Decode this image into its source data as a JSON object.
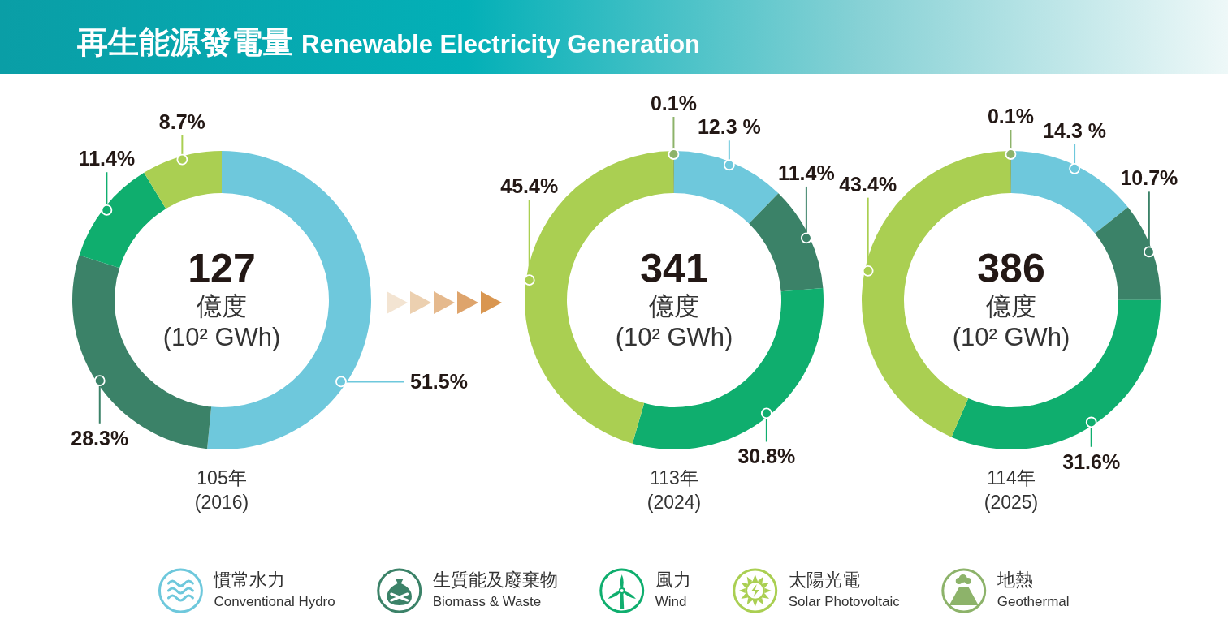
{
  "chart_data": [
    {
      "type": "other",
      "title": "再生能源發電量 Renewable Electricity Generation"
    },
    {
      "type": "donut",
      "title": "105年",
      "subtitle": "(2016)",
      "categories": [
        null,
        null,
        null,
        null
      ],
      "values": [
        51.5,
        28.3,
        11.4,
        8.7
      ],
      "colors": [
        "#6ec8dc",
        "#3b8268",
        "#0fae6e",
        "#aacf52"
      ],
      "value_labels": [
        "51.5%",
        "28.3%",
        "11.4%",
        "8.7%"
      ],
      "annotations": [
        "127",
        "億度",
        "(10² GWh)"
      ]
    },
    {
      "type": "donut",
      "title": "113年",
      "subtitle": "(2024)",
      "categories": [
        "慣常水力 Conventional Hydro",
        "生質能及廢棄物 Biomass & Waste",
        "風力 Wind",
        "太陽光電 Solar Photovoltaic",
        "地熱 Geothermal"
      ],
      "values": [
        12.3,
        11.4,
        30.8,
        45.4,
        0.1
      ],
      "colors": [
        "#6ec8dc",
        "#3b8268",
        "#0fae6e",
        "#aacf52",
        "#8db36a"
      ],
      "value_labels": [
        "12.3 %",
        "11.4%",
        "30.8%",
        "45.4%",
        "0.1%"
      ],
      "annotations": [
        "341",
        "億度",
        "(10² GWh)"
      ],
      "legend": "bottom"
    },
    {
      "type": "donut",
      "title": "114年",
      "subtitle": "(2025)",
      "categories": [
        null,
        null,
        null,
        null,
        null
      ],
      "values": [
        14.3,
        10.7,
        31.6,
        43.4,
        0.1
      ],
      "colors": [
        "#6ec8dc",
        "#3b8268",
        "#0fae6e",
        "#aacf52",
        "#8db36a"
      ],
      "value_labels": [
        "14.3 %",
        "10.7%",
        "31.6%",
        "43.4%",
        "0.1%"
      ],
      "annotations": [
        "386",
        "億度",
        "(10² GWh)"
      ]
    }
  ]
}
